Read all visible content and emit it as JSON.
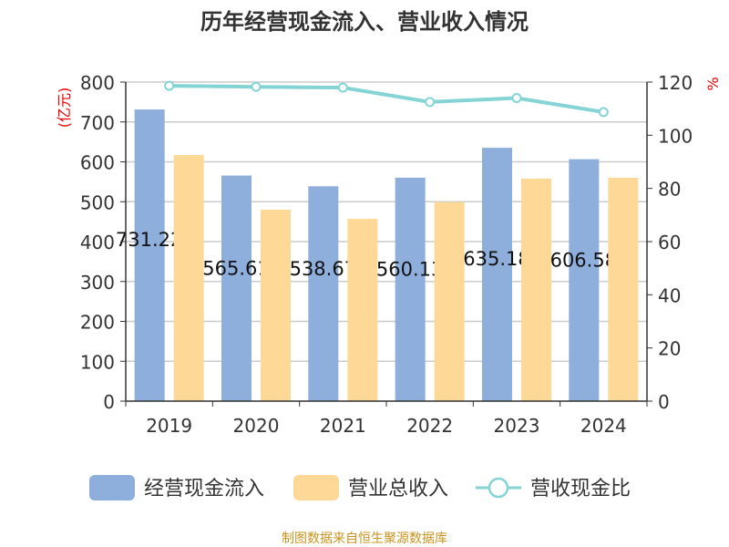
{
  "chart_data": {
    "type": "bar",
    "title": "历年经营现金流入、营业收入情况",
    "categories": [
      "2019",
      "2020",
      "2021",
      "2022",
      "2023",
      "2024"
    ],
    "series": [
      {
        "name": "经营现金流入",
        "type": "bar",
        "axis": "left",
        "color": "#8eaedb",
        "values": [
          731.22,
          565.61,
          538.67,
          560.13,
          635.18,
          606.58
        ],
        "labels": [
          "731.22",
          "565.61",
          "538.67",
          "560.13",
          "635.18",
          "606.58"
        ]
      },
      {
        "name": "营业总收入",
        "type": "bar",
        "axis": "left",
        "color": "#fed897",
        "values": [
          617,
          480,
          457,
          499,
          558,
          560
        ]
      },
      {
        "name": "营收现金比",
        "type": "line",
        "axis": "right",
        "color": "#84d4d6",
        "values": [
          118.6,
          118.2,
          117.9,
          112.5,
          114.0,
          108.7
        ]
      }
    ],
    "ylabel_left": "(亿元)",
    "ylabel_right": "%",
    "ylim_left": [
      0,
      800
    ],
    "yticks_left": [
      "0",
      "100",
      "200",
      "300",
      "400",
      "500",
      "600",
      "700",
      "800"
    ],
    "ylim_right": [
      0,
      120
    ],
    "yticks_right": [
      "0",
      "20",
      "40",
      "60",
      "80",
      "100",
      "120"
    ],
    "grid": true,
    "legend_position": "bottom"
  },
  "footer": "制图数据来自恒生聚源数据库"
}
